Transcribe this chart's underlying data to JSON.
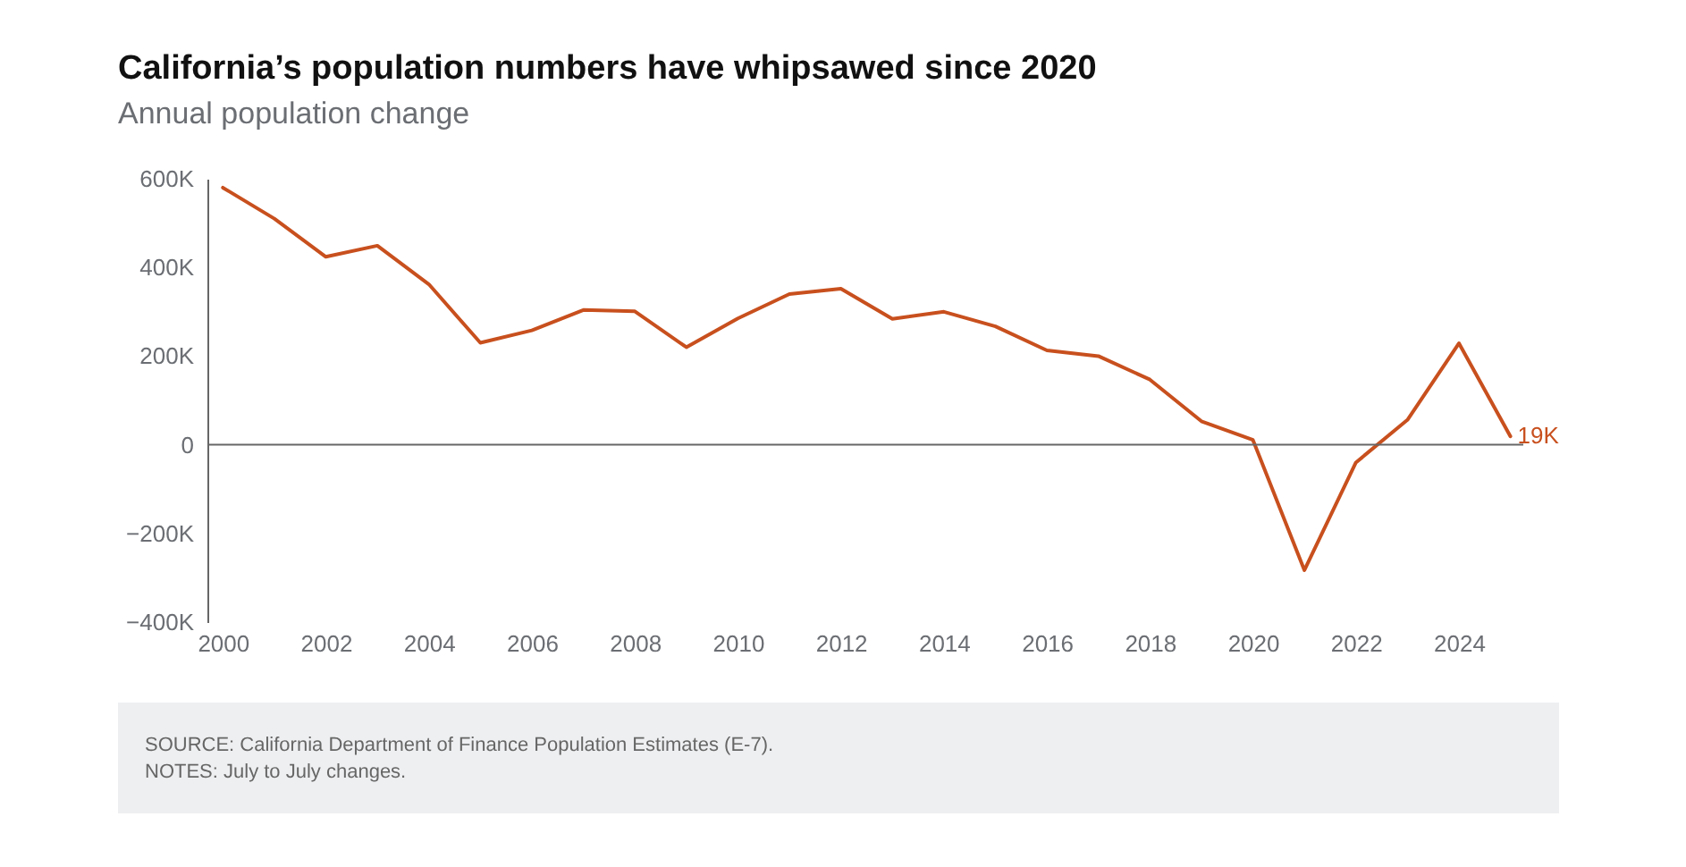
{
  "chart_data": {
    "type": "line",
    "title": "California’s population numbers have whipsawed since 2020",
    "subtitle": "Annual population change",
    "x": [
      2000,
      2001,
      2002,
      2003,
      2004,
      2005,
      2006,
      2007,
      2008,
      2009,
      2010,
      2011,
      2012,
      2013,
      2014,
      2015,
      2016,
      2017,
      2018,
      2019,
      2020,
      2021,
      2022,
      2023,
      2024,
      2025
    ],
    "values": [
      580000,
      510000,
      424000,
      449000,
      362000,
      230000,
      258000,
      304000,
      301000,
      220000,
      285000,
      340000,
      352000,
      284000,
      300000,
      267000,
      213000,
      200000,
      147000,
      53000,
      11000,
      -283000,
      -40000,
      56000,
      229000,
      19000
    ],
    "value_labels": [
      null,
      null,
      null,
      null,
      null,
      null,
      null,
      null,
      null,
      null,
      null,
      null,
      null,
      null,
      null,
      null,
      null,
      null,
      null,
      null,
      null,
      null,
      null,
      null,
      null,
      "19K"
    ],
    "color": "#c8501e",
    "xlim": [
      1999.7,
      2025.25
    ],
    "xticks": [
      2000,
      2002,
      2004,
      2006,
      2008,
      2010,
      2012,
      2014,
      2016,
      2018,
      2020,
      2022,
      2024
    ],
    "ylim": [
      -400000,
      600000
    ],
    "yticks": [
      {
        "value": -400000,
        "label": "−400K"
      },
      {
        "value": -200000,
        "label": "−200K"
      },
      0,
      {
        "value": 200000,
        "label": "200K"
      },
      {
        "value": 400000,
        "label": "400K"
      },
      {
        "value": 600000,
        "label": "600K"
      }
    ],
    "ref_lines": [
      {
        "axis": "y",
        "value": 0,
        "color": "#666666"
      }
    ],
    "annotations": [
      "SOURCE: California Department of Finance Population Estimates (E-7).",
      "NOTES: July to July changes."
    ],
    "grid": false,
    "line_style": "solid"
  }
}
